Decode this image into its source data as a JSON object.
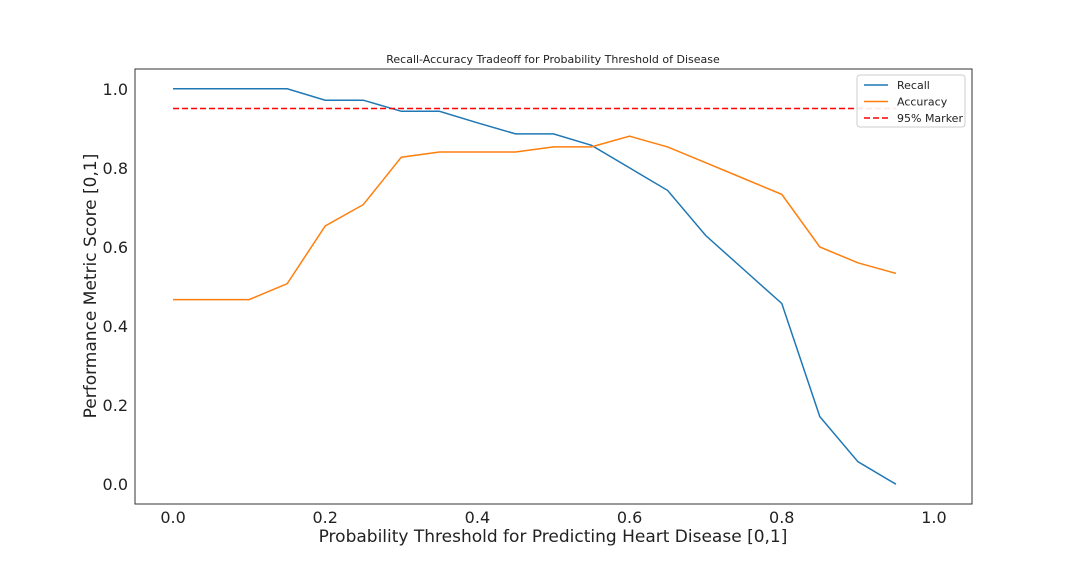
{
  "chart_data": {
    "type": "line",
    "title": "Recall-Accuracy Tradeoff for Probability Threshold of Disease",
    "xlabel": "Probability Threshold for Predicting Heart Disease [0,1]",
    "ylabel": "Performance Metric Score [0,1]",
    "xlim": [
      -0.05,
      1.05
    ],
    "ylim": [
      -0.05,
      1.05
    ],
    "xticks": [
      "0.0",
      "0.2",
      "0.4",
      "0.6",
      "0.8",
      "1.0"
    ],
    "yticks": [
      "0.0",
      "0.2",
      "0.4",
      "0.6",
      "0.8",
      "1.0"
    ],
    "grid": false,
    "legend_position": "top-right",
    "x": [
      0.0,
      0.05,
      0.1,
      0.15,
      0.2,
      0.25,
      0.3,
      0.35,
      0.4,
      0.45,
      0.5,
      0.55,
      0.6,
      0.65,
      0.7,
      0.75,
      0.8,
      0.85,
      0.9,
      0.95
    ],
    "series": [
      {
        "name": "Recall",
        "color": "#1f77b4",
        "style": "solid",
        "values": [
          1.0,
          1.0,
          1.0,
          1.0,
          0.971,
          0.971,
          0.943,
          0.943,
          0.914,
          0.886,
          0.886,
          0.857,
          0.8,
          0.743,
          0.629,
          0.543,
          0.457,
          0.171,
          0.057,
          0.0
        ]
      },
      {
        "name": "Accuracy",
        "color": "#ff7f0e",
        "style": "solid",
        "values": [
          0.467,
          0.467,
          0.467,
          0.507,
          0.653,
          0.707,
          0.827,
          0.84,
          0.84,
          0.84,
          0.853,
          0.853,
          0.88,
          0.853,
          0.813,
          0.773,
          0.733,
          0.6,
          0.56,
          0.533
        ]
      },
      {
        "name": "95% Marker",
        "color": "#ff0000",
        "style": "dashed",
        "values": [
          0.95,
          0.95,
          0.95,
          0.95,
          0.95,
          0.95,
          0.95,
          0.95,
          0.95,
          0.95,
          0.95,
          0.95,
          0.95,
          0.95,
          0.95,
          0.95,
          0.95,
          0.95,
          0.95,
          0.95
        ]
      }
    ]
  }
}
